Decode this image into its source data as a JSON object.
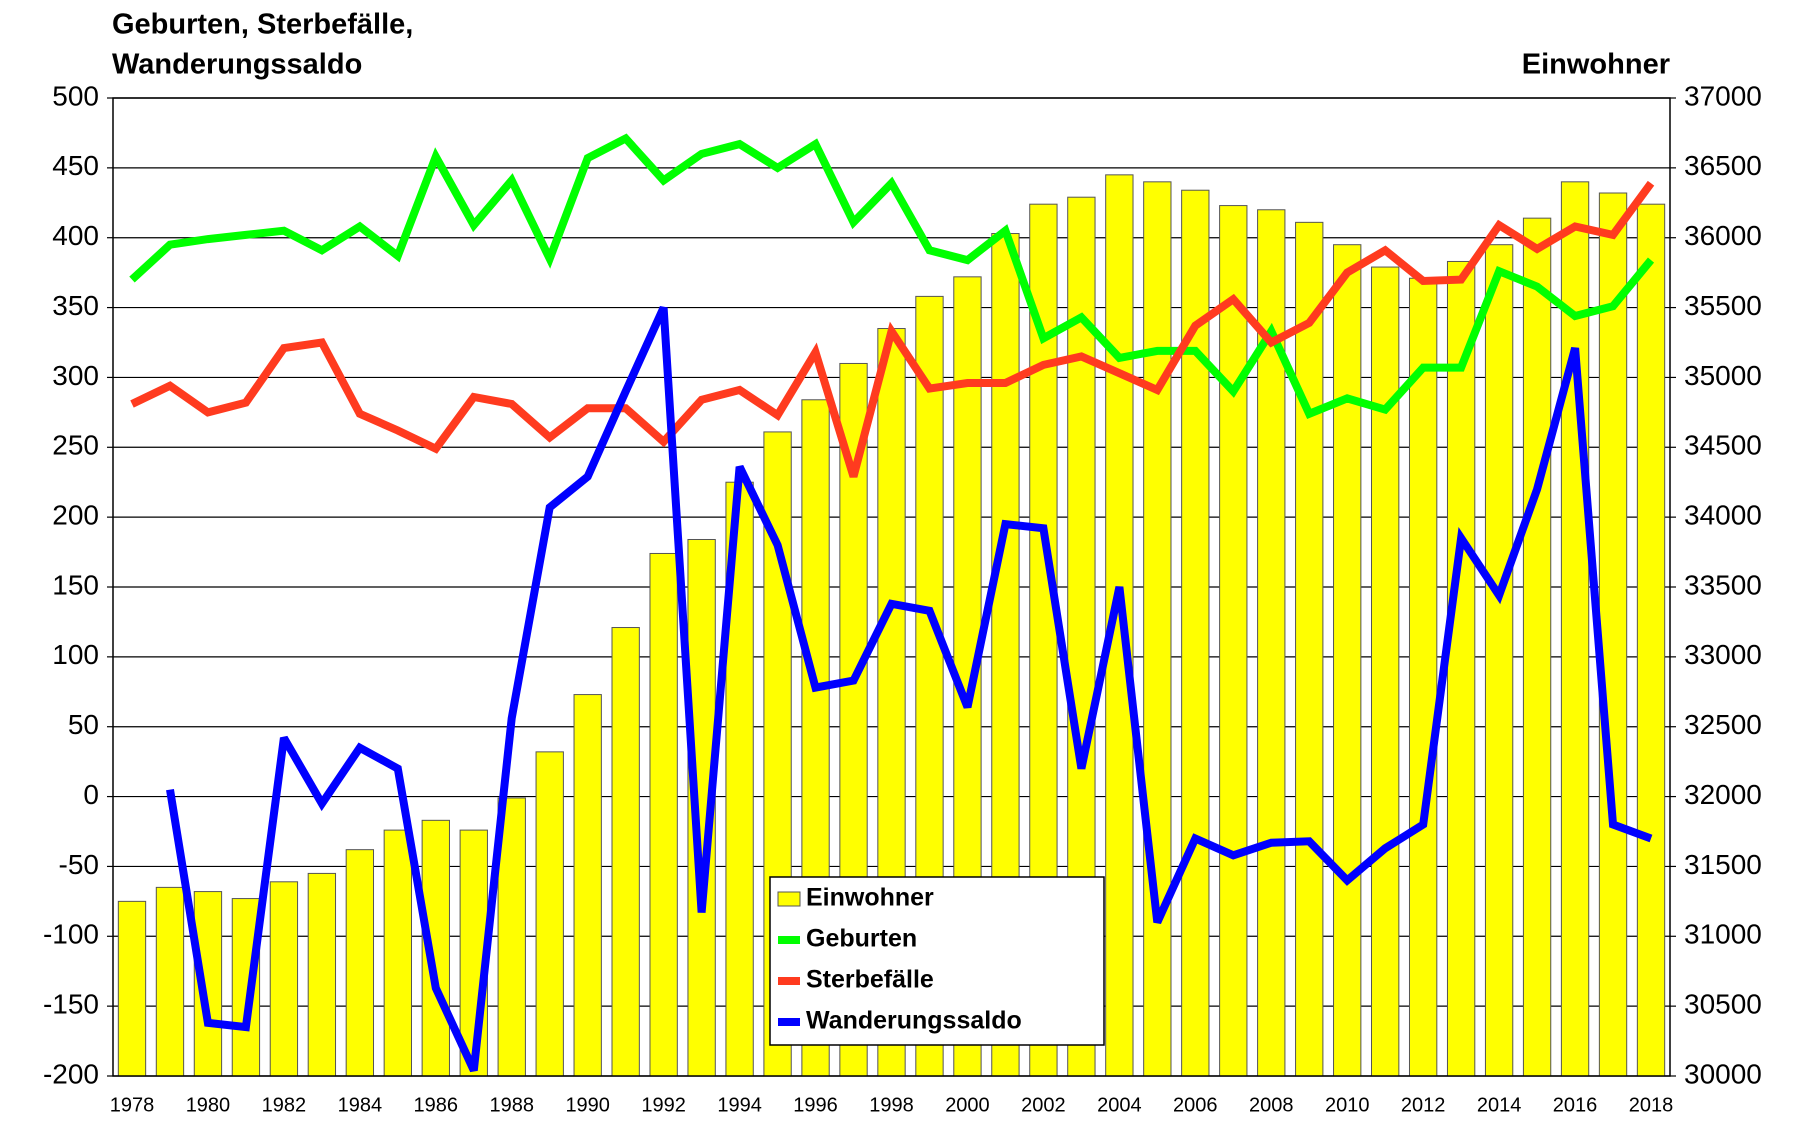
{
  "chart_data": {
    "type": "combo",
    "title": [
      "Geburten, Sterbefälle,",
      "Wanderungssaldo"
    ],
    "y2_title": "Einwohner",
    "categories": [
      "1978",
      null,
      "1980",
      null,
      "1982",
      null,
      "1984",
      null,
      "1986",
      null,
      "1988",
      null,
      "1990",
      null,
      "1992",
      null,
      "1994",
      null,
      "1996",
      null,
      "1998",
      null,
      "2000",
      null,
      "2002",
      null,
      "2004",
      null,
      "2006",
      null,
      "2008",
      null,
      "2010",
      null,
      "2012",
      null,
      "2014",
      null,
      "2016",
      null,
      "2018"
    ],
    "ylim": [
      -200,
      500
    ],
    "yticks": [
      -200,
      -150,
      -100,
      -50,
      0,
      50,
      100,
      150,
      200,
      250,
      300,
      350,
      400,
      450,
      500
    ],
    "y2lim": [
      30000,
      37000
    ],
    "y2ticks": [
      30000,
      30500,
      31000,
      31500,
      32000,
      32500,
      33000,
      33500,
      34000,
      34500,
      35000,
      35500,
      36000,
      36500,
      37000
    ],
    "grid": true,
    "series": [
      {
        "name": "Einwohner",
        "type": "bar",
        "axis": "y2",
        "color": "#ffff00",
        "values": [
          31250,
          31350,
          31320,
          31270,
          31390,
          31450,
          31620,
          31760,
          31830,
          31760,
          31990,
          32320,
          32730,
          33210,
          33740,
          33840,
          34250,
          34610,
          34840,
          35100,
          35350,
          35580,
          35720,
          36030,
          36240,
          36290,
          36450,
          36400,
          36340,
          36230,
          36200,
          36110,
          35950,
          35790,
          35710,
          35830,
          35950,
          36140,
          36400,
          36320,
          36240
        ]
      },
      {
        "name": "Geburten",
        "type": "line",
        "color": "#00ff00",
        "values": [
          370,
          395,
          399,
          402,
          405,
          391,
          408,
          387,
          458,
          409,
          441,
          385,
          457,
          471,
          441,
          460,
          467,
          450,
          467,
          411,
          439,
          391,
          384,
          405,
          328,
          343,
          314,
          319,
          319,
          290,
          333,
          274,
          285,
          277,
          307,
          307,
          376,
          365,
          344,
          351,
          384
        ]
      },
      {
        "name": "Sterbefälle",
        "type": "line",
        "color": "#ff3b1f",
        "values": [
          281,
          294,
          275,
          282,
          321,
          325,
          274,
          262,
          249,
          286,
          281,
          257,
          278,
          278,
          254,
          284,
          291,
          273,
          318,
          229,
          333,
          292,
          296,
          296,
          309,
          315,
          303,
          291,
          337,
          356,
          325,
          339,
          375,
          391,
          369,
          370,
          409,
          392,
          408,
          402,
          439
        ]
      },
      {
        "name": "Wanderungssaldo",
        "type": "line",
        "color": "#0000ff",
        "values": [
          null,
          5,
          -162,
          -165,
          42,
          -5,
          35,
          20,
          -137,
          -196,
          56,
          207,
          229,
          290,
          350,
          -83,
          236,
          180,
          78,
          83,
          138,
          133,
          64,
          195,
          192,
          20,
          150,
          -90,
          -30,
          -42,
          -33,
          -32,
          -60,
          -37,
          -20,
          185,
          144,
          220,
          321,
          -20,
          -30
        ]
      }
    ]
  }
}
